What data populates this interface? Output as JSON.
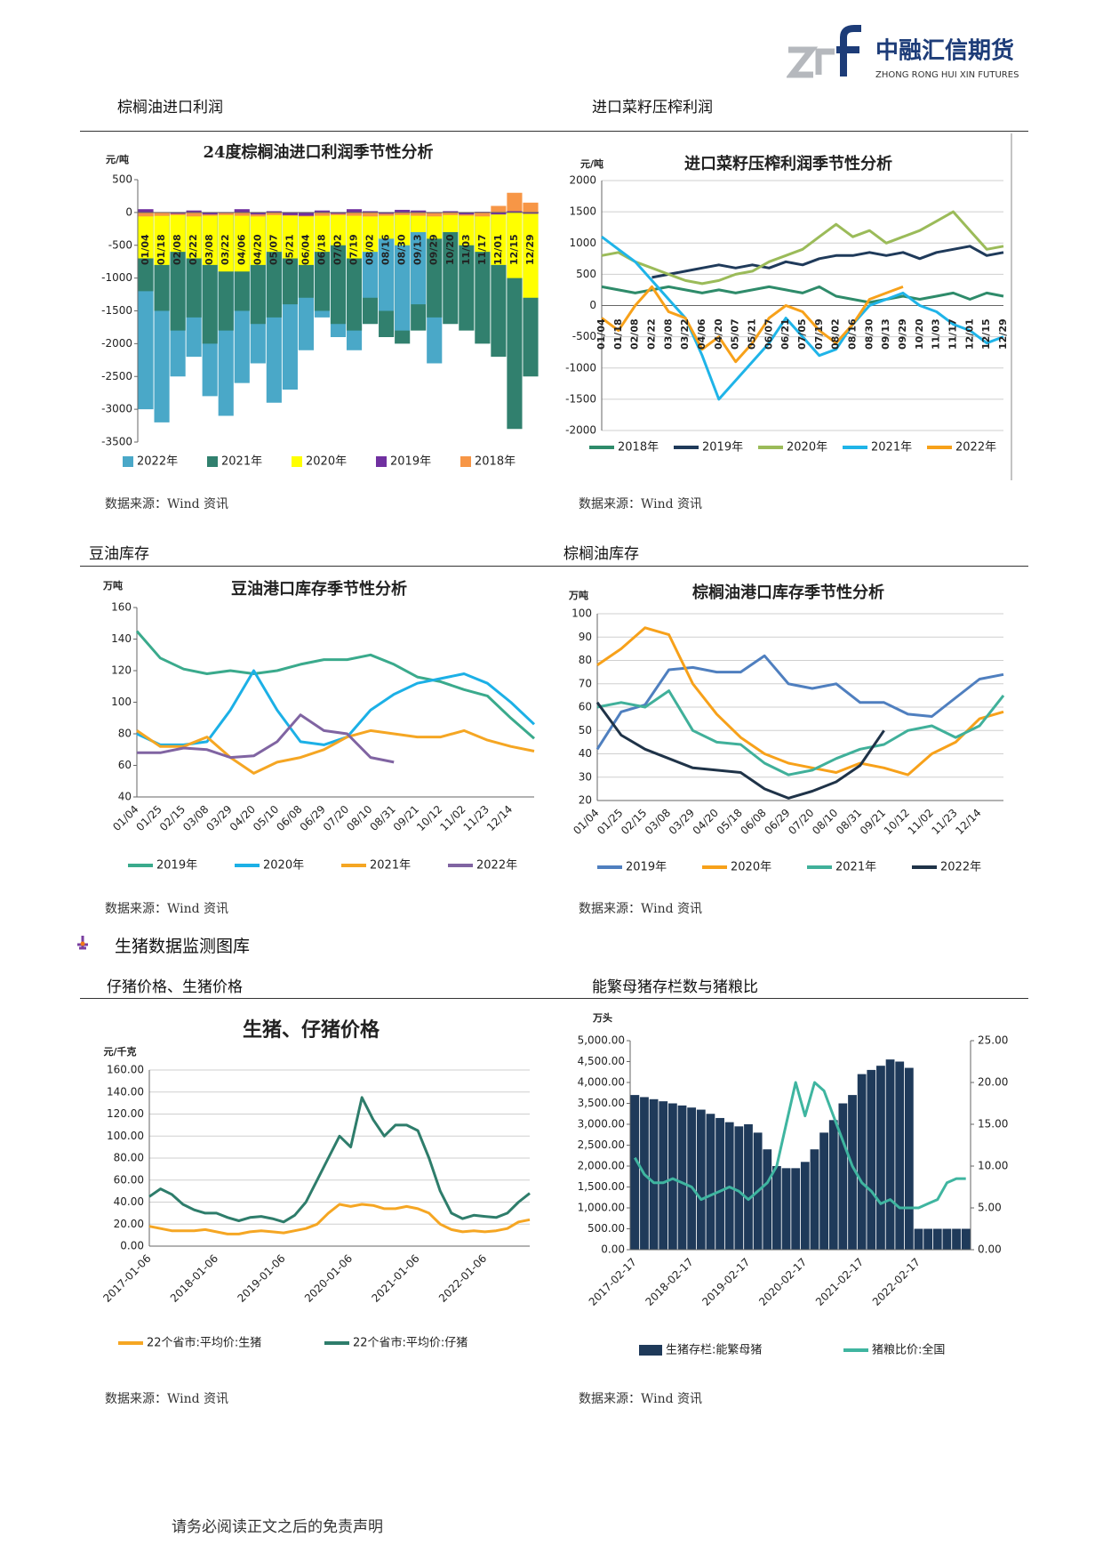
{
  "page": {
    "logo_cn": "中融汇信期货",
    "logo_en": "ZHONG RONG HUI XIN FUTURES",
    "panels": [
      {
        "heading": "棕榈油进口利润",
        "source": "数据来源：Wind 资讯"
      },
      {
        "heading": "进口菜籽压榨利润",
        "source": "数据来源：Wind 资讯"
      },
      {
        "heading": "豆油库存",
        "source": "数据来源：Wind 资讯"
      },
      {
        "heading": "棕榈油库存",
        "source": "数据来源：Wind 资讯"
      },
      {
        "heading": "仔猪价格、生猪价格",
        "source": "数据来源：Wind 资讯"
      },
      {
        "heading": "能繁母猪存栏数与猪粮比",
        "source": "数据来源：Wind 资讯"
      }
    ],
    "section_title": "生猪数据监测图库",
    "footer": "请务必阅读正文之后的免责声明"
  },
  "chart_data": [
    {
      "type": "bar",
      "title": "24度棕榈油进口利润季节性分析",
      "ylabel": "元/吨",
      "ylim": [
        -3500,
        500
      ],
      "yticks": [
        500,
        0,
        -500,
        -1000,
        -1500,
        -2000,
        -2500,
        -3000,
        -3500
      ],
      "grid": false,
      "categories": [
        "01/04",
        "01/18",
        "02/08",
        "02/22",
        "03/08",
        "03/22",
        "04/06",
        "04/20",
        "05/07",
        "05/21",
        "06/04",
        "06/18",
        "07/02",
        "07/19",
        "08/02",
        "08/16",
        "08/30",
        "09/13",
        "09/29",
        "10/20",
        "11/03",
        "11/17",
        "12/01",
        "12/15",
        "12/29"
      ],
      "series": [
        {
          "name": "2022年",
          "color": "#4aa8c8",
          "values": [
            -3000,
            -3200,
            -2500,
            -2200,
            -2800,
            -3100,
            -2600,
            -2300,
            -2900,
            -2700,
            -2100,
            -1600,
            -1900,
            -2100,
            -1300,
            -1500,
            -1800,
            -1400,
            -2300,
            null,
            null,
            null,
            null,
            null,
            null
          ]
        },
        {
          "name": "2021年",
          "color": "#31806e",
          "values": [
            -1200,
            -1500,
            -1800,
            -1600,
            -2000,
            -1800,
            -1500,
            -1700,
            -1600,
            -1400,
            -1300,
            -1500,
            -1700,
            -1800,
            -1700,
            -1900,
            -2000,
            -1800,
            -1600,
            -1700,
            -1800,
            -2000,
            -2200,
            -3300,
            -2500
          ]
        },
        {
          "name": "2020年",
          "color": "#ffff00",
          "values": [
            -700,
            -800,
            -600,
            -700,
            -800,
            -900,
            -900,
            -800,
            -600,
            -700,
            -800,
            -600,
            -500,
            -700,
            -600,
            -400,
            -500,
            -300,
            -400,
            -300,
            -500,
            -600,
            -800,
            -1000,
            -1300
          ]
        },
        {
          "name": "2019年",
          "color": "#7030a0",
          "values": [
            50,
            -50,
            -20,
            30,
            -30,
            -10,
            50,
            -30,
            20,
            -40,
            -50,
            30,
            -20,
            50,
            20,
            -20,
            40,
            30,
            -10,
            20,
            -30,
            10,
            -30,
            20,
            -20
          ]
        },
        {
          "name": "2018年",
          "color": "#f79646",
          "values": [
            -60,
            -50,
            -40,
            -60,
            -50,
            -40,
            -50,
            -60,
            -40,
            -50,
            -60,
            -50,
            -40,
            -50,
            -60,
            -50,
            -40,
            -50,
            -60,
            -40,
            -50,
            -60,
            100,
            300,
            150
          ]
        }
      ]
    },
    {
      "type": "line",
      "title": "进口菜籽压榨利润季节性分析",
      "ylabel": "元/吨",
      "ylim": [
        -2000,
        2000
      ],
      "yticks": [
        2000,
        1500,
        1000,
        500,
        0,
        -500,
        -1000,
        -1500,
        -2000
      ],
      "grid": true,
      "categories": [
        "01/04",
        "01/18",
        "02/08",
        "02/22",
        "03/08",
        "03/22",
        "04/06",
        "04/20",
        "05/07",
        "05/21",
        "06/07",
        "06/21",
        "07/05",
        "07/19",
        "08/02",
        "08/16",
        "08/30",
        "09/13",
        "09/29",
        "10/20",
        "11/03",
        "11/17",
        "12/01",
        "12/15",
        "12/29"
      ],
      "series": [
        {
          "name": "2018年",
          "color": "#2e8b6a",
          "values": [
            300,
            250,
            200,
            250,
            300,
            250,
            200,
            250,
            200,
            250,
            300,
            250,
            200,
            300,
            150,
            100,
            50,
            100,
            150,
            100,
            150,
            200,
            100,
            200,
            150
          ]
        },
        {
          "name": "2019年",
          "color": "#1f3a5a",
          "values": [
            null,
            null,
            null,
            450,
            500,
            550,
            600,
            650,
            600,
            650,
            600,
            700,
            650,
            750,
            800,
            800,
            850,
            800,
            850,
            750,
            850,
            900,
            950,
            800,
            850
          ]
        },
        {
          "name": "2020年",
          "color": "#9bbb59",
          "values": [
            800,
            850,
            700,
            600,
            500,
            400,
            350,
            400,
            500,
            550,
            700,
            800,
            900,
            1100,
            1300,
            1100,
            1200,
            1000,
            1100,
            1200,
            1350,
            1500,
            1200,
            900,
            950
          ]
        },
        {
          "name": "2021年",
          "color": "#1fb4e8",
          "values": [
            1100,
            900,
            700,
            400,
            100,
            -200,
            -800,
            -1500,
            -1200,
            -900,
            -600,
            -200,
            -500,
            -800,
            -700,
            -300,
            0,
            100,
            200,
            0,
            -100,
            -300,
            -400,
            -600,
            -500
          ]
        },
        {
          "name": "2022年",
          "color": "#f7a11a",
          "values": [
            -200,
            -400,
            0,
            300,
            -100,
            -200,
            -700,
            -500,
            -900,
            -600,
            -200,
            0,
            -100,
            -400,
            -600,
            -300,
            100,
            200,
            300,
            null,
            null,
            null,
            null,
            null,
            null
          ]
        }
      ]
    },
    {
      "type": "line",
      "title": "豆油港口库存季节性分析",
      "ylabel": "万吨",
      "ylim": [
        40,
        160
      ],
      "yticks": [
        40,
        60,
        80,
        100,
        120,
        140,
        160
      ],
      "grid": false,
      "categories": [
        "01/04",
        "01/25",
        "02/15",
        "03/08",
        "03/29",
        "04/20",
        "05/10",
        "06/08",
        "06/29",
        "07/20",
        "08/10",
        "08/31",
        "09/21",
        "10/12",
        "11/02",
        "11/23",
        "12/14",
        null
      ],
      "series": [
        {
          "name": "2019年",
          "color": "#3aaa8c",
          "values": [
            145,
            128,
            121,
            118,
            120,
            118,
            120,
            124,
            127,
            127,
            130,
            124,
            116,
            113,
            108,
            104,
            90,
            77
          ]
        },
        {
          "name": "2020年",
          "color": "#1cb0e6",
          "values": [
            80,
            73,
            73,
            75,
            95,
            120,
            95,
            75,
            73,
            78,
            95,
            105,
            112,
            115,
            118,
            112,
            100,
            86
          ]
        },
        {
          "name": "2021年",
          "color": "#f5a623",
          "values": [
            82,
            72,
            72,
            78,
            65,
            55,
            62,
            65,
            70,
            78,
            82,
            80,
            78,
            78,
            82,
            76,
            72,
            69
          ]
        },
        {
          "name": "2022年",
          "color": "#8064a2",
          "values": [
            68,
            68,
            71,
            70,
            65,
            66,
            75,
            92,
            82,
            80,
            65,
            62,
            null,
            null,
            null,
            null,
            null,
            null
          ]
        }
      ]
    },
    {
      "type": "line",
      "title": "棕榈油港口库存季节性分析",
      "ylabel": "万吨",
      "ylim": [
        20,
        100
      ],
      "yticks": [
        20,
        30,
        40,
        50,
        60,
        70,
        80,
        90,
        100
      ],
      "grid": true,
      "categories": [
        "01/04",
        "01/25",
        "02/15",
        "03/08",
        "03/29",
        "04/20",
        "05/18",
        "06/08",
        "06/29",
        "07/20",
        "08/10",
        "08/31",
        "09/21",
        "10/12",
        "11/02",
        "11/23",
        "12/14",
        null
      ],
      "series": [
        {
          "name": "2019年",
          "color": "#4f7fbf",
          "values": [
            42,
            58,
            61,
            76,
            77,
            75,
            75,
            82,
            70,
            68,
            70,
            62,
            62,
            57,
            56,
            64,
            72,
            74
          ]
        },
        {
          "name": "2020年",
          "color": "#f7a11a",
          "values": [
            78,
            85,
            94,
            91,
            70,
            57,
            47,
            40,
            36,
            34,
            32,
            36,
            34,
            31,
            40,
            45,
            55,
            58
          ]
        },
        {
          "name": "2021年",
          "color": "#40b09a",
          "values": [
            60,
            62,
            60,
            67,
            50,
            45,
            44,
            36,
            31,
            33,
            38,
            42,
            44,
            50,
            52,
            47,
            52,
            65
          ]
        },
        {
          "name": "2022年",
          "color": "#1f3348",
          "values": [
            62,
            48,
            42,
            38,
            34,
            33,
            32,
            25,
            21,
            24,
            28,
            35,
            50,
            null,
            null,
            null,
            null,
            null
          ]
        }
      ]
    },
    {
      "type": "line",
      "title": "生猪、仔猪价格",
      "ylabel": "元/千克",
      "ylim": [
        0,
        160
      ],
      "yticks": [
        {
          "value": 0,
          "label": "0.00"
        },
        {
          "value": 20,
          "label": "20.00"
        },
        {
          "value": 40,
          "label": "40.00"
        },
        {
          "value": 60,
          "label": "60.00"
        },
        {
          "value": 80,
          "label": "80.00"
        },
        {
          "value": 100,
          "label": "100.00"
        },
        {
          "value": 120,
          "label": "120.00"
        },
        {
          "value": 140,
          "label": "140.00"
        },
        {
          "value": 160,
          "label": "160.00"
        }
      ],
      "grid": true,
      "categories": [
        "2017-01-06",
        null,
        null,
        null,
        null,
        null,
        "2018-01-06",
        null,
        null,
        null,
        null,
        null,
        "2019-01-06",
        null,
        null,
        null,
        null,
        null,
        "2020-01-06",
        null,
        null,
        null,
        null,
        null,
        "2021-01-06",
        null,
        null,
        null,
        null,
        null,
        "2022-01-06",
        null,
        null,
        null,
        null
      ],
      "series": [
        {
          "name": "22个省市:平均价:生猪",
          "color": "#f5a623",
          "values": [
            18,
            16,
            14,
            14,
            14,
            15,
            13,
            11,
            11,
            13,
            14,
            13,
            12,
            14,
            16,
            20,
            30,
            38,
            36,
            38,
            37,
            34,
            34,
            36,
            34,
            30,
            20,
            15,
            13,
            14,
            13,
            14,
            16,
            22,
            24
          ]
        },
        {
          "name": "22个省市:平均价:仔猪",
          "color": "#2e7d6b",
          "values": [
            45,
            52,
            47,
            38,
            33,
            30,
            30,
            26,
            23,
            26,
            27,
            25,
            22,
            28,
            40,
            60,
            80,
            100,
            90,
            135,
            115,
            100,
            110,
            110,
            105,
            80,
            50,
            30,
            25,
            28,
            27,
            26,
            30,
            40,
            48
          ]
        }
      ]
    },
    {
      "type": "bar",
      "ylabel": "万头",
      "ylim": [
        0,
        5000
      ],
      "yticks": [
        {
          "value": 0,
          "label": "0.00"
        },
        {
          "value": 500,
          "label": "500.00"
        },
        {
          "value": 1000,
          "label": "1,000.00"
        },
        {
          "value": 1500,
          "label": "1,500.00"
        },
        {
          "value": 2000,
          "label": "2,000.00"
        },
        {
          "value": 2500,
          "label": "2,500.00"
        },
        {
          "value": 3000,
          "label": "3,000.00"
        },
        {
          "value": 3500,
          "label": "3,500.00"
        },
        {
          "value": 4000,
          "label": "4,000.00"
        },
        {
          "value": 4500,
          "label": "4,500.00"
        },
        {
          "value": 5000,
          "label": "5,000.00"
        }
      ],
      "y2lim": [
        0,
        25
      ],
      "y2ticks": [
        {
          "value": 0,
          "label": "0.00"
        },
        {
          "value": 5,
          "label": "5.00"
        },
        {
          "value": 10,
          "label": "10.00"
        },
        {
          "value": 15,
          "label": "15.00"
        },
        {
          "value": 20,
          "label": "20.00"
        },
        {
          "value": 25,
          "label": "25.00"
        }
      ],
      "grid": false,
      "categories": [
        "2017-02-17",
        null,
        null,
        null,
        null,
        null,
        "2018-02-17",
        null,
        null,
        null,
        null,
        null,
        "2019-02-17",
        null,
        null,
        null,
        null,
        null,
        "2020-02-17",
        null,
        null,
        null,
        null,
        null,
        "2021-02-17",
        null,
        null,
        null,
        null,
        null,
        "2022-02-17",
        null,
        null,
        null,
        null,
        null
      ],
      "series": [
        {
          "name": "生猪存栏:能繁母猪",
          "color": "#1f3a5a",
          "values": [
            3700,
            3650,
            3600,
            3550,
            3500,
            3450,
            3400,
            3350,
            3250,
            3150,
            3050,
            2950,
            3000,
            2800,
            2400,
            2000,
            1950,
            1950,
            2100,
            2400,
            2800,
            3100,
            3500,
            3700,
            4200,
            4300,
            4400,
            4550,
            4500,
            4350,
            500,
            500,
            500,
            500,
            500,
            500
          ]
        },
        {
          "name": "猪粮比价:全国",
          "color": "#3fb5a0",
          "type": "line",
          "axis": "y2",
          "values": [
            11,
            9,
            8,
            8,
            8.5,
            8,
            7.5,
            6,
            6.5,
            7,
            7.5,
            7,
            6,
            7,
            8,
            10,
            15,
            20,
            16,
            20,
            19,
            16,
            13,
            10,
            8,
            7,
            5.5,
            6,
            5,
            5,
            5,
            5.5,
            6,
            8,
            8.5,
            8.5
          ]
        }
      ]
    }
  ]
}
